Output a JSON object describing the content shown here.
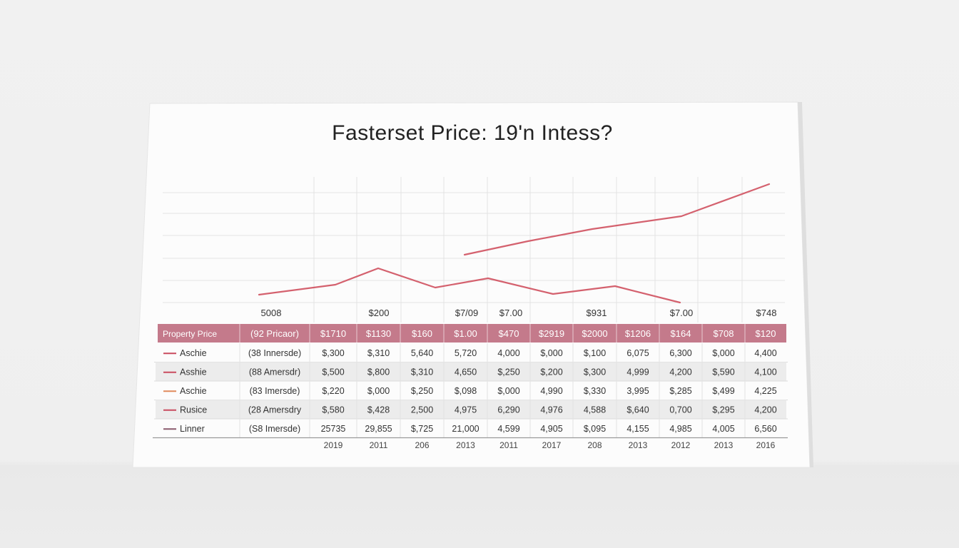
{
  "chart_data": {
    "type": "line",
    "title": "Fasterset Price: 19'n Intess?",
    "series": [
      {
        "color": "#d4616e",
        "points": [
          {
            "x": 363,
            "y": 413
          },
          {
            "x": 470,
            "y": 399
          },
          {
            "x": 530,
            "y": 376
          },
          {
            "x": 610,
            "y": 403
          },
          {
            "x": 684,
            "y": 390
          },
          {
            "x": 775,
            "y": 412
          },
          {
            "x": 862,
            "y": 401
          },
          {
            "x": 953,
            "y": 424
          }
        ]
      },
      {
        "color": "#d4616e",
        "points": [
          {
            "x": 651,
            "y": 357
          },
          {
            "x": 740,
            "y": 338
          },
          {
            "x": 830,
            "y": 321
          },
          {
            "x": 955,
            "y": 303
          },
          {
            "x": 1078,
            "y": 258
          }
        ]
      }
    ],
    "axis_value_labels": [
      {
        "text": "5008",
        "col": 2
      },
      {
        "text": "$200",
        "col": 4
      },
      {
        "text": "$7/09",
        "col": 6
      },
      {
        "text": "$7.00",
        "col": 7
      },
      {
        "text": "$931",
        "col": 9
      },
      {
        "text": "$7.00",
        "col": 12
      },
      {
        "text": "$748",
        "col": 14
      }
    ],
    "table": {
      "header": [
        "Property Price",
        "(92 Pricaor)",
        "$1710",
        "$1130",
        "$160",
        "$1.00",
        "$470",
        "$2919",
        "$2000",
        "$1206",
        "$164",
        "$708",
        "$120"
      ],
      "rows": [
        {
          "swatch": "#c94b5e",
          "cells": [
            "Aschie",
            "(38 Innersde)",
            "$,300",
            "$,310",
            "5,640",
            "5,720",
            "4,000",
            "$,000",
            "$,100",
            "6,075",
            "6,300",
            "$,000",
            "4,400"
          ]
        },
        {
          "swatch": "#c94b5e",
          "cells": [
            "Asshie",
            "(88 Amersdr)",
            "$,500",
            "$,800",
            "$,310",
            "4,650",
            "$,250",
            "$,200",
            "$,300",
            "4,999",
            "4,200",
            "$,590",
            "4,100"
          ]
        },
        {
          "swatch": "#e08a5c",
          "cells": [
            "Aschie",
            "(83 Imersde)",
            "$,220",
            "$,000",
            "$,250",
            "$,098",
            "$,000",
            "4,990",
            "$,330",
            "3,995",
            "$,285",
            "$,499",
            "4,225"
          ]
        },
        {
          "swatch": "#c94b5e",
          "cells": [
            "Rusice",
            "(28 Amersdry",
            "$,580",
            "$,428",
            "2,500",
            "4,975",
            "6,290",
            "4,976",
            "4,588",
            "$,640",
            "0,700",
            "$,295",
            "4,200"
          ]
        },
        {
          "swatch": "#8a5a6c",
          "cells": [
            "Linner",
            "(S8 Imersde)",
            "25735",
            "29,855",
            "$,725",
            "21,000",
            "4,599",
            "4,905",
            "$,095",
            "4,155",
            "4,985",
            "4,005",
            "6,560"
          ]
        }
      ]
    },
    "x_labels": [
      "2019",
      "2011",
      "206",
      "2013",
      "2011",
      "2017",
      "208",
      "2013",
      "2012",
      "2013",
      "2016"
    ],
    "colors": {
      "header_fill": "#c47a8b",
      "band_fill": "#ececec",
      "grid": "#e3e3e3",
      "line": "#d4616e"
    }
  }
}
